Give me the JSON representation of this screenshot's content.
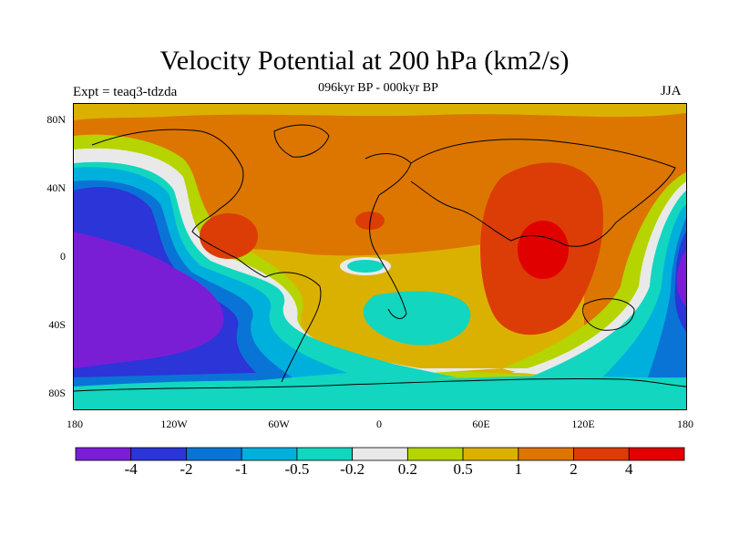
{
  "figure": {
    "title": "Velocity Potential at 200 hPa (km2/s)",
    "subtitle": "096kyr BP - 000kyr BP",
    "left_label": "Expt = teaq3-tdzda",
    "right_label": "JJA"
  },
  "map": {
    "projection": "cylindrical-equidistant",
    "lat_ticks": [
      "80N",
      "40N",
      "0",
      "40S",
      "80S"
    ],
    "lon_ticks": [
      "180",
      "120W",
      "60W",
      "0",
      "60E",
      "120E",
      "180"
    ],
    "coastlines": true,
    "field": "velocity potential anomaly"
  },
  "colorbar": {
    "colors": [
      "#7a1ed6",
      "#2b35d8",
      "#0a74d6",
      "#00b0dc",
      "#12d6bf",
      "#e9e9e9",
      "#b5d400",
      "#dbb100",
      "#dc7600",
      "#dc3c05",
      "#e00000"
    ],
    "tick_labels": [
      "-4",
      "-2",
      "-1",
      "-0.5",
      "-0.2",
      "0.2",
      "0.5",
      "1",
      "2",
      "4"
    ],
    "levels": [
      -4,
      -2,
      -1,
      -0.5,
      -0.2,
      0.2,
      0.5,
      1,
      2,
      4
    ]
  }
}
